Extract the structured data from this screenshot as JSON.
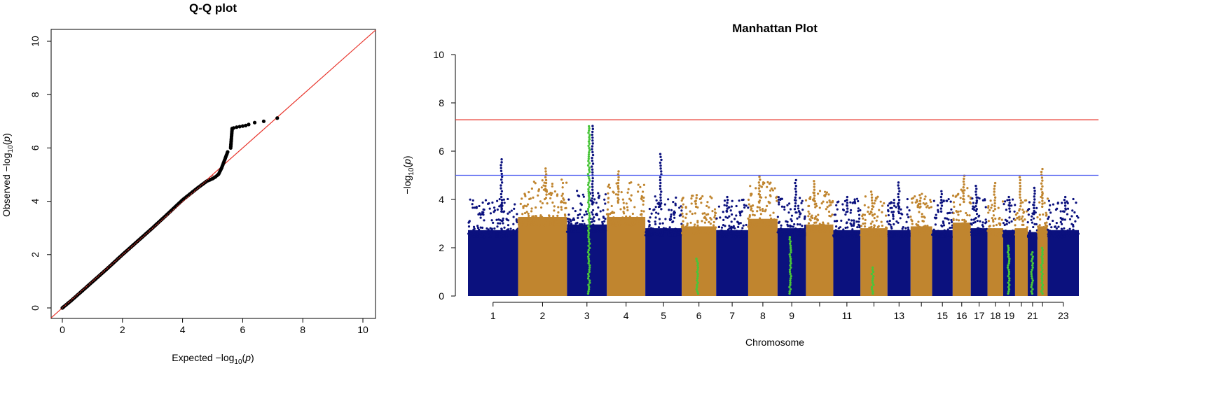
{
  "chart_data": [
    {
      "type": "scatter",
      "title": "Q-Q plot",
      "xlabel": "Expected −log",
      "ylabel": "Observed −log",
      "xlim": [
        0,
        10
      ],
      "ylim": [
        0,
        10
      ],
      "xticks": [
        "0",
        "2",
        "4",
        "6",
        "8",
        "10"
      ],
      "yticks": [
        "0",
        "2",
        "4",
        "6",
        "8",
        "10"
      ],
      "reference_line": {
        "slope": 1,
        "intercept": 0,
        "color": "#e8332a"
      },
      "colors": {
        "points": "#000000"
      },
      "points": [
        [
          0.0,
          0.0
        ],
        [
          0.3,
          0.28
        ],
        [
          0.6,
          0.58
        ],
        [
          1.0,
          0.98
        ],
        [
          1.5,
          1.48
        ],
        [
          2.0,
          2.0
        ],
        [
          2.5,
          2.5
        ],
        [
          3.0,
          3.0
        ],
        [
          3.5,
          3.52
        ],
        [
          4.0,
          4.05
        ],
        [
          4.5,
          4.5
        ],
        [
          4.8,
          4.75
        ],
        [
          5.0,
          4.85
        ],
        [
          5.1,
          4.92
        ],
        [
          5.2,
          5.02
        ],
        [
          5.3,
          5.25
        ],
        [
          5.4,
          5.55
        ],
        [
          5.5,
          5.85
        ],
        [
          5.6,
          6.0
        ],
        [
          5.65,
          6.73
        ],
        [
          5.7,
          6.75
        ],
        [
          5.8,
          6.78
        ],
        [
          5.9,
          6.8
        ],
        [
          6.0,
          6.82
        ],
        [
          6.1,
          6.84
        ],
        [
          6.2,
          6.88
        ],
        [
          6.4,
          6.95
        ],
        [
          6.7,
          7.0
        ],
        [
          7.15,
          7.12
        ]
      ]
    },
    {
      "type": "scatter",
      "title": "Manhattan Plot",
      "xlabel": "Chromosome",
      "ylabel": "−log",
      "ylim": [
        0,
        10
      ],
      "yticks": [
        "0",
        "2",
        "4",
        "6",
        "8",
        "10"
      ],
      "categories": [
        "1",
        "2",
        "3",
        "4",
        "5",
        "6",
        "7",
        "8",
        "9",
        "11",
        "13",
        "15",
        "16",
        "17",
        "18",
        "19",
        "21",
        "23"
      ],
      "suggestive_line": {
        "y": 5.0,
        "color": "#4b5bf0"
      },
      "genomewide_line": {
        "y": 7.3,
        "color": "#e8332a"
      },
      "colors": {
        "odd": "#0b117e",
        "even": "#c0852f",
        "highlight": "#49c53a"
      },
      "chromosomes": [
        {
          "chr": 1,
          "base_max": 3.5,
          "peak": 5.7
        },
        {
          "chr": 2,
          "base_max": 4.2,
          "peak": 5.3
        },
        {
          "chr": 3,
          "base_max": 3.8,
          "peak": 7.1
        },
        {
          "chr": 4,
          "base_max": 4.2,
          "peak": 5.2
        },
        {
          "chr": 5,
          "base_max": 3.6,
          "peak": 5.95
        },
        {
          "chr": 6,
          "base_max": 3.7,
          "peak": 4.3
        },
        {
          "chr": 7,
          "base_max": 3.5,
          "peak": 4.2
        },
        {
          "chr": 8,
          "base_max": 4.1,
          "peak": 5.0
        },
        {
          "chr": 9,
          "base_max": 3.6,
          "peak": 4.9
        },
        {
          "chr": 10,
          "base_max": 3.8,
          "peak": 4.8
        },
        {
          "chr": 11,
          "base_max": 3.5,
          "peak": 4.2
        },
        {
          "chr": 12,
          "base_max": 3.6,
          "peak": 4.4
        },
        {
          "chr": 13,
          "base_max": 3.5,
          "peak": 4.8
        },
        {
          "chr": 14,
          "base_max": 3.7,
          "peak": 4.3
        },
        {
          "chr": 15,
          "base_max": 3.5,
          "peak": 4.4
        },
        {
          "chr": 16,
          "base_max": 3.9,
          "peak": 5.0
        },
        {
          "chr": 17,
          "base_max": 3.6,
          "peak": 4.6
        },
        {
          "chr": 18,
          "base_max": 3.6,
          "peak": 4.7
        },
        {
          "chr": 19,
          "base_max": 3.5,
          "peak": 4.2
        },
        {
          "chr": 20,
          "base_max": 3.6,
          "peak": 5.0
        },
        {
          "chr": 21,
          "base_max": 3.4,
          "peak": 4.5
        },
        {
          "chr": 22,
          "base_max": 3.7,
          "peak": 5.3
        },
        {
          "chr": 23,
          "base_max": 3.5,
          "peak": 4.2
        }
      ],
      "highlight_snp_clusters": [
        {
          "chr": 3,
          "max": 7.1
        },
        {
          "chr": 6,
          "max": 1.6
        },
        {
          "chr": 9,
          "max": 2.5
        },
        {
          "chr": 12,
          "max": 1.2
        },
        {
          "chr": 19,
          "max": 2.1
        },
        {
          "chr": 21,
          "max": 1.9
        },
        {
          "chr": 22,
          "max": 2.0
        }
      ]
    }
  ]
}
